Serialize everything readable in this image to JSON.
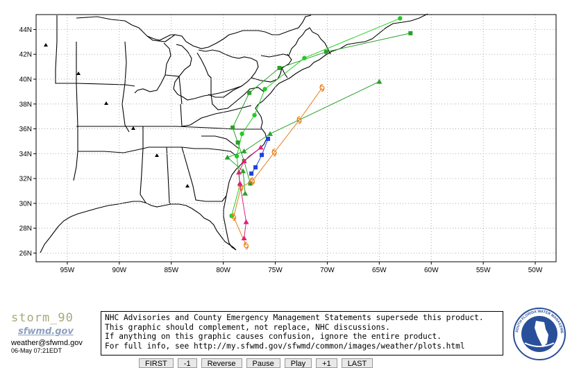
{
  "map": {
    "lat_labels": [
      "44N",
      "42N",
      "40N",
      "38N",
      "36N",
      "34N",
      "32N",
      "30N",
      "28N",
      "26N"
    ],
    "lat_values": [
      44,
      42,
      40,
      38,
      36,
      34,
      32,
      30,
      28,
      26
    ],
    "lon_labels": [
      "95W",
      "90W",
      "85W",
      "80W",
      "75W",
      "70W",
      "65W",
      "60W",
      "55W",
      "50W"
    ],
    "lon_values": [
      -95,
      -90,
      -85,
      -80,
      -75,
      -70,
      -65,
      -60,
      -55,
      -50
    ],
    "extent": {
      "lon_min": -98,
      "lon_max": -48,
      "lat_min": 25.3,
      "lat_max": 45.2
    },
    "colors": {
      "land_border": "#000000",
      "grid": "#999999",
      "track_green_dark": "#2aa02a",
      "track_green_light": "#22cc22",
      "track_orange": "#e8801a",
      "track_magenta": "#e0207a",
      "track_blue": "#2040e0"
    },
    "tracks": [
      {
        "name": "green-squares",
        "color": "#2aa02a",
        "marker": "square",
        "points": [
          [
            -77.4,
            31.6
          ],
          [
            -78,
            33.4
          ],
          [
            -78.6,
            34.9
          ],
          [
            -79.1,
            36.1
          ],
          [
            -77.5,
            38.9
          ],
          [
            -74.6,
            40.9
          ],
          [
            -70.1,
            42.2
          ],
          [
            -62,
            43.7
          ]
        ]
      },
      {
        "name": "green-circles",
        "color": "#22cc22",
        "marker": "circle",
        "points": [
          [
            -79.2,
            29
          ],
          [
            -78.4,
            31.5
          ],
          [
            -78.7,
            33.8
          ],
          [
            -78.2,
            35.6
          ],
          [
            -77,
            37.1
          ],
          [
            -76,
            39.2
          ],
          [
            -72.2,
            41.7
          ],
          [
            -63,
            44.9
          ]
        ]
      },
      {
        "name": "green-triangles",
        "color": "#2aa02a",
        "marker": "triangle",
        "points": [
          [
            -77.9,
            30.8
          ],
          [
            -78.1,
            32.6
          ],
          [
            -79.6,
            33.7
          ],
          [
            -78,
            34.2
          ],
          [
            -75.5,
            35.6
          ],
          [
            -65,
            39.8
          ]
        ]
      },
      {
        "name": "orange-tropical",
        "color": "#e8801a",
        "marker": "storm",
        "points": [
          [
            -77.8,
            26.6
          ],
          [
            -79,
            28.9
          ],
          [
            -78.3,
            31.3
          ],
          [
            -77.2,
            31.8
          ],
          [
            -75.1,
            34.1
          ],
          [
            -72.7,
            36.7
          ],
          [
            -70.5,
            39.3
          ]
        ]
      },
      {
        "name": "magenta-triangles",
        "color": "#e0207a",
        "marker": "triangle",
        "points": [
          [
            -78,
            27.2
          ],
          [
            -77.8,
            28.5
          ],
          [
            -78.4,
            31.6
          ],
          [
            -78.5,
            32.5
          ],
          [
            -78,
            33.4
          ],
          [
            -76.4,
            34.5
          ]
        ]
      },
      {
        "name": "blue-squares",
        "color": "#2040e0",
        "marker": "square",
        "points": [
          [
            -77.3,
            32.4
          ],
          [
            -76.9,
            32.9
          ],
          [
            -76.3,
            33.9
          ],
          [
            -75.7,
            35.2
          ]
        ]
      }
    ]
  },
  "footer": {
    "storm_name": "storm_90",
    "logo_text": "sfwmd.gov",
    "email": "weather@sfwmd.gov",
    "timestamp": "06-May 07:21EDT",
    "notice_lines": [
      "NHC Advisories and County Emergency Management Statements supersede this product.",
      "This graphic should complement, not replace, NHC discussions.",
      "If anything on this graphic causes confusion, ignore the entire product.",
      "For full info, see  http://my.sfwmd.gov/sfwmd/common/images/weather/plots.html"
    ],
    "controls": [
      "FIRST",
      "-1",
      "Reverse",
      "Pause",
      "Play",
      "+1",
      "LAST"
    ],
    "seal_ring": "SOUTH FLORIDA WATER MANAGEMENT DISTRICT"
  }
}
